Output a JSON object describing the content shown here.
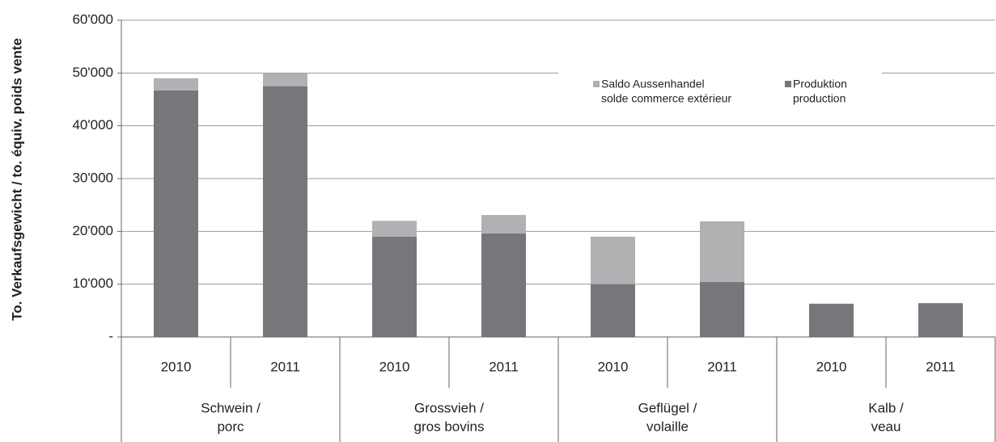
{
  "chart_data": {
    "type": "stacked-bar",
    "y_label": "To. Verkaufsgewicht / to. équiv. poids vente",
    "categories": [
      "2010",
      "2011",
      "2010",
      "2011",
      "2010",
      "2011",
      "2010",
      "2011"
    ],
    "groups": [
      [
        "Schwein /",
        "porc"
      ],
      [
        "Grossvieh /",
        "gros bovins"
      ],
      [
        "Geflügel /",
        "volaille"
      ],
      [
        "Kalb /",
        "veau"
      ]
    ],
    "series": [
      {
        "name": [
          "Produktion",
          "production"
        ],
        "color": "#76777b",
        "values": [
          46700,
          47500,
          19000,
          19600,
          10000,
          10400,
          6300,
          6400
        ]
      },
      {
        "name": [
          "Saldo Aussenhandel",
          "solde commerce extérieur"
        ],
        "color": "#b0b1b3",
        "values": [
          2300,
          2500,
          3000,
          3500,
          9000,
          11500,
          0,
          0
        ]
      }
    ],
    "ylim": [
      0,
      60000
    ],
    "yticks": [
      {
        "value": 0,
        "label": "-"
      },
      {
        "value": 10000,
        "label": "10'000"
      },
      {
        "value": 20000,
        "label": "20'000"
      },
      {
        "value": 30000,
        "label": "30'000"
      },
      {
        "value": 40000,
        "label": "40'000"
      },
      {
        "value": 50000,
        "label": "50'000"
      },
      {
        "value": 60000,
        "label": "60'000"
      }
    ],
    "grid": true
  }
}
